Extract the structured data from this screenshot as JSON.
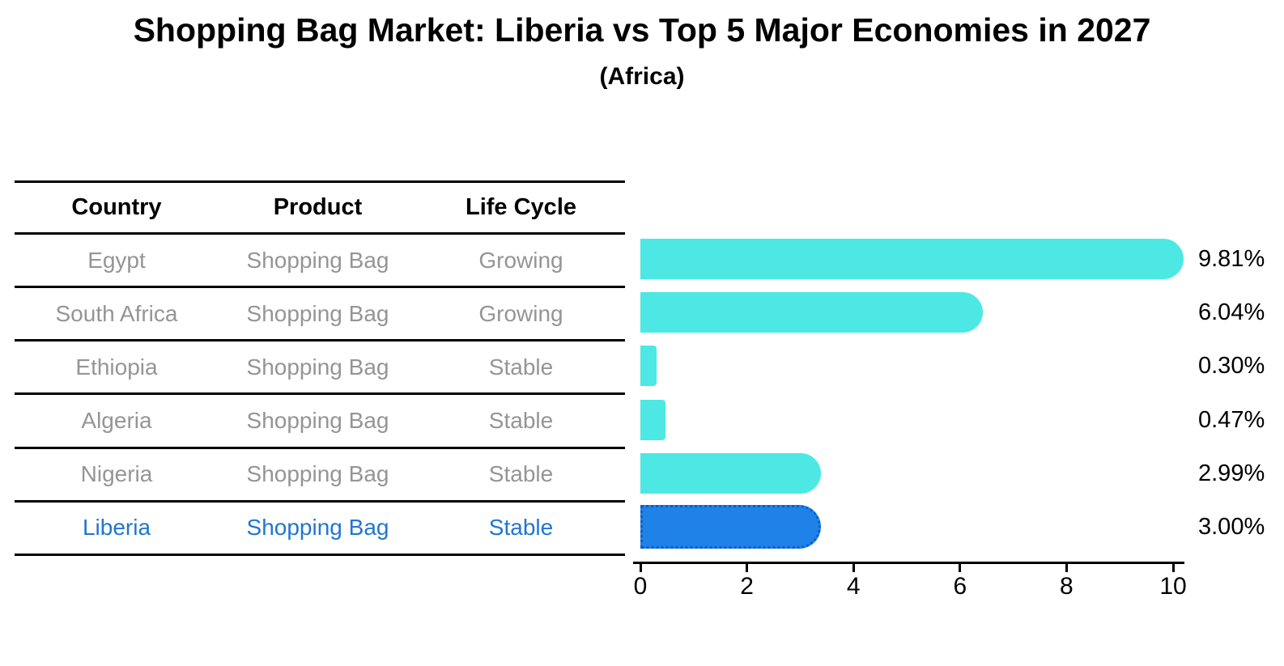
{
  "chart_data": {
    "type": "bar",
    "orientation": "horizontal",
    "title": "Shopping Bag Market: Liberia vs Top 5 Major Economies in 2027",
    "subtitle": "(Africa)",
    "xlim": [
      0,
      10
    ],
    "xticks": [
      0,
      2,
      4,
      6,
      8,
      10
    ],
    "grid": false,
    "legend": false,
    "categories": [
      "Egypt",
      "South Africa",
      "Ethiopia",
      "Algeria",
      "Nigeria",
      "Liberia"
    ],
    "values": [
      9.81,
      6.04,
      0.3,
      0.47,
      2.99,
      3.0
    ],
    "rows": [
      {
        "country": "Egypt",
        "product": "Shopping Bag",
        "life_cycle": "Growing",
        "value": 9.81,
        "label": "9.81%",
        "highlight": false
      },
      {
        "country": "South Africa",
        "product": "Shopping Bag",
        "life_cycle": "Growing",
        "value": 6.04,
        "label": "6.04%",
        "highlight": false
      },
      {
        "country": "Ethiopia",
        "product": "Shopping Bag",
        "life_cycle": "Stable",
        "value": 0.3,
        "label": "0.30%",
        "highlight": false
      },
      {
        "country": "Algeria",
        "product": "Shopping Bag",
        "life_cycle": "Stable",
        "value": 0.47,
        "label": "0.47%",
        "highlight": false
      },
      {
        "country": "Nigeria",
        "product": "Shopping Bag",
        "life_cycle": "Stable",
        "value": 2.99,
        "label": "2.99%",
        "highlight": false
      },
      {
        "country": "Liberia",
        "product": "Shopping Bag",
        "life_cycle": "Stable",
        "value": 3.0,
        "label": "3.00%",
        "highlight": true
      }
    ],
    "colors": {
      "bar_default": "#4DE8E3",
      "bar_highlight": "#1E82E8",
      "bar_highlight_border": "#0F5FC4",
      "highlight_text": "#2176cf",
      "row_text": "#959595",
      "axis_and_lines": "#000000"
    }
  },
  "table": {
    "columns": [
      "Country",
      "Product",
      "Life Cycle"
    ]
  }
}
